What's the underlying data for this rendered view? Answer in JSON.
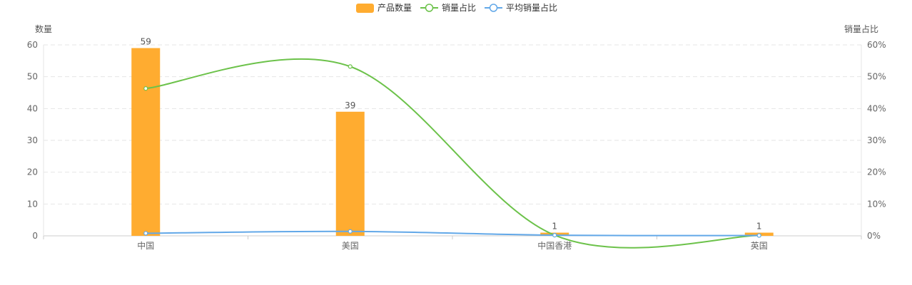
{
  "chart_data": {
    "type": "bar",
    "categories": [
      "中国",
      "美国",
      "中国香港",
      "英国"
    ],
    "series": [
      {
        "name": "产品数量",
        "kind": "bar",
        "axis": "left",
        "values": [
          59,
          39,
          1,
          1
        ],
        "labels": [
          "59",
          "39",
          "1",
          "1"
        ],
        "color": "#ffac30"
      },
      {
        "name": "销量占比",
        "kind": "line",
        "axis": "right",
        "values": [
          46.3,
          53.2,
          0.2,
          0.1
        ],
        "color": "#6cc24a"
      },
      {
        "name": "平均销量占比",
        "kind": "line",
        "axis": "right",
        "values": [
          0.8,
          1.4,
          0.2,
          0.1
        ],
        "color": "#62a8e8"
      }
    ],
    "left_axis": {
      "name": "数量",
      "ticks": [
        "0",
        "10",
        "20",
        "30",
        "40",
        "50",
        "60"
      ],
      "min": 0,
      "max": 60
    },
    "right_axis": {
      "name": "销量占比",
      "ticks": [
        "0%",
        "10%",
        "20%",
        "30%",
        "40%",
        "50%",
        "60%"
      ],
      "min": 0,
      "max": 60
    },
    "grid": true,
    "legend_position": "top-center"
  },
  "colors": {
    "grid": "#e6e6e6",
    "axis": "#cccccc",
    "text": "#666666"
  }
}
